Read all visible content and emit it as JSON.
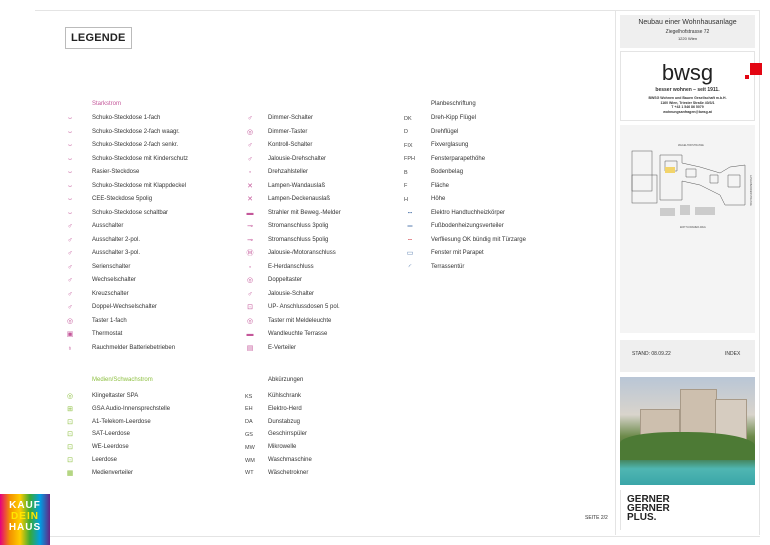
{
  "legend_title": "LEGENDE",
  "colors": {
    "starkstrom": "#c4579a",
    "medien": "#8cbf3f",
    "bwsg_red": "#e30613"
  },
  "starkstrom": {
    "header": "Starkstrom",
    "col1": [
      {
        "icon": "socket-icon",
        "label": "Schuko-Steckdose 1-fach"
      },
      {
        "icon": "double-socket-horizontal-icon",
        "label": "Schuko-Steckdose 2-fach waagr."
      },
      {
        "icon": "double-socket-vertical-icon",
        "label": "Schuko-Steckdose 2-fach senkr."
      },
      {
        "icon": "child-safe-socket-icon",
        "label": "Schuko-Steckdose mit Kinderschutz"
      },
      {
        "icon": "shaver-socket-icon",
        "label": "Rasier-Steckdose"
      },
      {
        "icon": "flap-socket-icon",
        "label": "Schuko-Steckdose mit Klappdeckel"
      },
      {
        "icon": "cee-socket-icon",
        "label": "CEE-Steckdose 5polig"
      },
      {
        "icon": "switched-socket-icon",
        "label": "Schuko-Steckdose schaltbar"
      },
      {
        "icon": "switch-icon",
        "label": "Ausschalter"
      },
      {
        "icon": "switch-2pol-icon",
        "label": "Ausschalter 2-pol."
      },
      {
        "icon": "switch-3pol-icon",
        "label": "Ausschalter 3-pol."
      },
      {
        "icon": "series-switch-icon",
        "label": "Serienschalter"
      },
      {
        "icon": "two-way-switch-icon",
        "label": "Wechselschalter"
      },
      {
        "icon": "cross-switch-icon",
        "label": "Kreuzschalter"
      },
      {
        "icon": "double-two-way-switch-icon",
        "label": "Doppel-Wechselschalter"
      },
      {
        "icon": "push-button-icon",
        "label": "Taster 1-fach"
      },
      {
        "icon": "thermostat-icon",
        "label": "Thermostat"
      },
      {
        "icon": "smoke-detector-icon",
        "label": "Rauchmelder Batteriebetrieben"
      }
    ],
    "col2": [
      {
        "icon": "dimmer-switch-icon",
        "label": "Dimmer-Schalter"
      },
      {
        "icon": "dimmer-button-icon",
        "label": "Dimmer-Taster"
      },
      {
        "icon": "control-switch-icon",
        "label": "Kontroll-Schalter"
      },
      {
        "icon": "blind-rotary-switch-icon",
        "label": "Jalousie-Drehschalter"
      },
      {
        "icon": "speed-controller-icon",
        "label": "Drehzahlsteller"
      },
      {
        "icon": "wall-lamp-outlet-icon",
        "label": "Lampen-Wandauslaß"
      },
      {
        "icon": "ceiling-lamp-outlet-icon",
        "label": "Lampen-Deckenauslaß"
      },
      {
        "icon": "motion-spotlight-icon",
        "label": "Strahler mit Beweg.-Melder"
      },
      {
        "icon": "power-3pin-icon",
        "label": "Stromanschluss 3polig"
      },
      {
        "icon": "power-5pin-icon",
        "label": "Stromanschluss 5polig"
      },
      {
        "icon": "motor-connection-icon",
        "label": "Jalousie-/Motoranschluss"
      },
      {
        "icon": "stove-connection-icon",
        "label": "E-Herdanschluss"
      },
      {
        "icon": "double-button-icon",
        "label": "Doppeltaster"
      },
      {
        "icon": "blind-switch-icon",
        "label": "Jalousie-Schalter"
      },
      {
        "icon": "flush-box-icon",
        "label": "UP- Anschlussdosen 5 pol."
      },
      {
        "icon": "button-indicator-icon",
        "label": "Taster mit Meldeleuchte"
      },
      {
        "icon": "terrace-wall-light-icon",
        "label": "Wandleuchte Terrasse"
      },
      {
        "icon": "distribution-board-icon",
        "label": "E-Verteiler"
      }
    ]
  },
  "planbeschriftung": {
    "header": "Planbeschriftung",
    "items": [
      {
        "code": "DK",
        "label": "Dreh-Kipp Flügel"
      },
      {
        "code": "D",
        "label": "Drehflügel"
      },
      {
        "code": "FIX",
        "label": "Fixverglasung"
      },
      {
        "code": "FPH",
        "label": "Fensterparapethöhe"
      },
      {
        "code": "B",
        "label": "Bodenbelag"
      },
      {
        "code": "F",
        "label": "Fläche"
      },
      {
        "code": "H",
        "label": "Höhe"
      },
      {
        "icon": "towel-radiator-icon",
        "label": "Elektro Handtuchheizkörper"
      },
      {
        "icon": "floor-heating-distributor-icon",
        "label": "Fußbodenheizungsverteiler"
      },
      {
        "icon": "tiling-line-icon",
        "label": "Verfliesung OK bündig mit Türzarge"
      },
      {
        "icon": "window-parapet-icon",
        "label": "Fenster mit Parapet"
      },
      {
        "icon": "terrace-door-icon",
        "label": "Terrassentür"
      }
    ]
  },
  "medien": {
    "header": "Medien/Schwachstrom",
    "items": [
      {
        "icon": "doorbell-button-icon",
        "label": "Klingeltaster SPA"
      },
      {
        "icon": "intercom-icon",
        "label": "GSA Audio-Innensprechstelle"
      },
      {
        "icon": "telekom-box-icon",
        "label": "A1-Telekom-Leerdose"
      },
      {
        "icon": "sat-box-icon",
        "label": "SAT-Leerdose"
      },
      {
        "icon": "we-box-icon",
        "label": "WE-Leerdose"
      },
      {
        "icon": "empty-box-icon",
        "label": "Leerdose"
      },
      {
        "icon": "media-distributor-icon",
        "label": "Medienverteiler"
      }
    ]
  },
  "abkuerzungen": {
    "header": "Abkürzungen",
    "items": [
      {
        "code": "KS",
        "label": "Kühlschrank"
      },
      {
        "code": "EH",
        "label": "Elektro-Herd"
      },
      {
        "code": "DA",
        "label": "Dunstabzug"
      },
      {
        "code": "GS",
        "label": "Geschirrspüler"
      },
      {
        "code": "MW",
        "label": "Mikrowelle"
      },
      {
        "code": "WM",
        "label": "Waschmaschine"
      },
      {
        "code": "WT",
        "label": "Wäschetrokner"
      }
    ]
  },
  "title_block": {
    "project": "Neubau einer Wohnhausanlage",
    "street": "Ziegelhofstrasse 72",
    "city": "1220 Wien"
  },
  "bwsg": {
    "logo": "bwsg",
    "tagline": "besser wohnen – seit 1911.",
    "address": [
      "BWSG Wohnen und Bauen Gesellschaft m.b.H.",
      "1160 Wien, Triester Straße 40/3/1",
      "T +43 1 546 86 5079",
      "wohnungsanfragen@bwsg.at"
    ]
  },
  "plan": {
    "street_top": "ZIEGELHOFSTRASSE",
    "street_bottom": "EDITH-KRAMER-WEG",
    "street_right": "LANGOBARDENSTRASSE"
  },
  "stand": {
    "label": "STAND: 08.09.22",
    "index": "INDEX"
  },
  "gerner_logo": [
    "GERNER",
    "GERNER",
    "PLUS."
  ],
  "page": "SEITE 2/2",
  "kauf_logo": [
    "KAUF",
    "DEIN",
    "HAUS"
  ]
}
